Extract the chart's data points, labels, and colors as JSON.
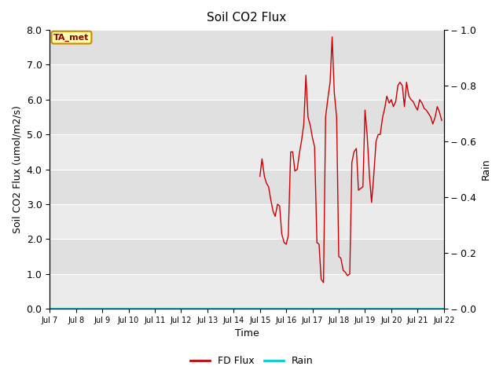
{
  "title": "Soil CO2 Flux",
  "ylabel_left": "Soil CO2 Flux (umol/m2/s)",
  "ylabel_right": "Rain",
  "xlabel": "Time",
  "ylim_left": [
    0.0,
    8.0
  ],
  "ylim_right": [
    0.0,
    1.0
  ],
  "yticks_left": [
    0.0,
    1.0,
    2.0,
    3.0,
    4.0,
    5.0,
    6.0,
    7.0,
    8.0
  ],
  "yticks_right": [
    0.0,
    0.2,
    0.4,
    0.6,
    0.8,
    1.0
  ],
  "ytick_labels_right": [
    "0.0",
    "0.2",
    "0.4",
    "0.6",
    "0.8",
    "1.0"
  ],
  "background_color_light": "#ebebeb",
  "background_color_dark": "#e0e0e0",
  "flux_color": "#cc0000",
  "rain_color": "#00cccc",
  "annotation_text": "TA_met",
  "annotation_bg": "#ffffaa",
  "annotation_border": "#cc8800",
  "legend_flux": "FD Flux",
  "legend_rain": "Rain",
  "flux_data_x": [
    15.0,
    15.08,
    15.17,
    15.25,
    15.33,
    15.42,
    15.5,
    15.58,
    15.67,
    15.75,
    15.83,
    15.92,
    16.0,
    16.08,
    16.17,
    16.25,
    16.33,
    16.42,
    16.5,
    16.58,
    16.67,
    16.75,
    16.83,
    16.92,
    17.0,
    17.08,
    17.17,
    17.25,
    17.33,
    17.42,
    17.5,
    17.58,
    17.67,
    17.75,
    17.83,
    17.92,
    18.0,
    18.08,
    18.17,
    18.25,
    18.33,
    18.42,
    18.5,
    18.58,
    18.67,
    18.75,
    18.83,
    18.92,
    19.0,
    19.08,
    19.17,
    19.25,
    19.33,
    19.42,
    19.5,
    19.58,
    19.67,
    19.75,
    19.83,
    19.92,
    20.0,
    20.08,
    20.17,
    20.25,
    20.33,
    20.42,
    20.5,
    20.58,
    20.67,
    20.75,
    20.83,
    20.92,
    21.0,
    21.08,
    21.17,
    21.25,
    21.33,
    21.42,
    21.5,
    21.58,
    21.67,
    21.75,
    21.83,
    21.92
  ],
  "flux_data_y": [
    3.8,
    4.3,
    3.8,
    3.6,
    3.5,
    3.1,
    2.8,
    2.65,
    3.0,
    2.95,
    2.15,
    1.9,
    1.85,
    2.1,
    4.5,
    4.5,
    3.95,
    4.0,
    4.45,
    4.8,
    5.3,
    6.7,
    5.5,
    5.25,
    4.9,
    4.65,
    1.9,
    1.85,
    0.85,
    0.75,
    5.5,
    6.0,
    6.5,
    7.8,
    6.2,
    5.5,
    1.5,
    1.45,
    1.1,
    1.05,
    0.95,
    1.0,
    4.2,
    4.5,
    4.6,
    3.4,
    3.45,
    3.5,
    5.7,
    5.0,
    3.8,
    3.05,
    3.8,
    4.8,
    5.0,
    5.0,
    5.5,
    5.75,
    6.1,
    5.9,
    6.0,
    5.8,
    5.95,
    6.4,
    6.5,
    6.4,
    5.8,
    6.5,
    6.1,
    6.0,
    5.95,
    5.8,
    5.7,
    6.0,
    5.9,
    5.75,
    5.7,
    5.6,
    5.5,
    5.3,
    5.5,
    5.8,
    5.65,
    5.4
  ],
  "xtick_positions": [
    7,
    8,
    9,
    10,
    11,
    12,
    13,
    14,
    15,
    16,
    17,
    18,
    19,
    20,
    21,
    22
  ],
  "xtick_labels": [
    "Jul 7",
    "Jul 8",
    "Jul 9",
    "Jul 10",
    "Jul 11",
    "Jul 12",
    "Jul 13",
    "Jul 14",
    "Jul 15",
    "Jul 16",
    "Jul 17",
    "Jul 18",
    "Jul 19",
    "Jul 20",
    "Jul 21",
    "Jul 22"
  ],
  "xlim": [
    7,
    22
  ],
  "fig_width": 6.4,
  "fig_height": 4.8,
  "dpi": 100
}
